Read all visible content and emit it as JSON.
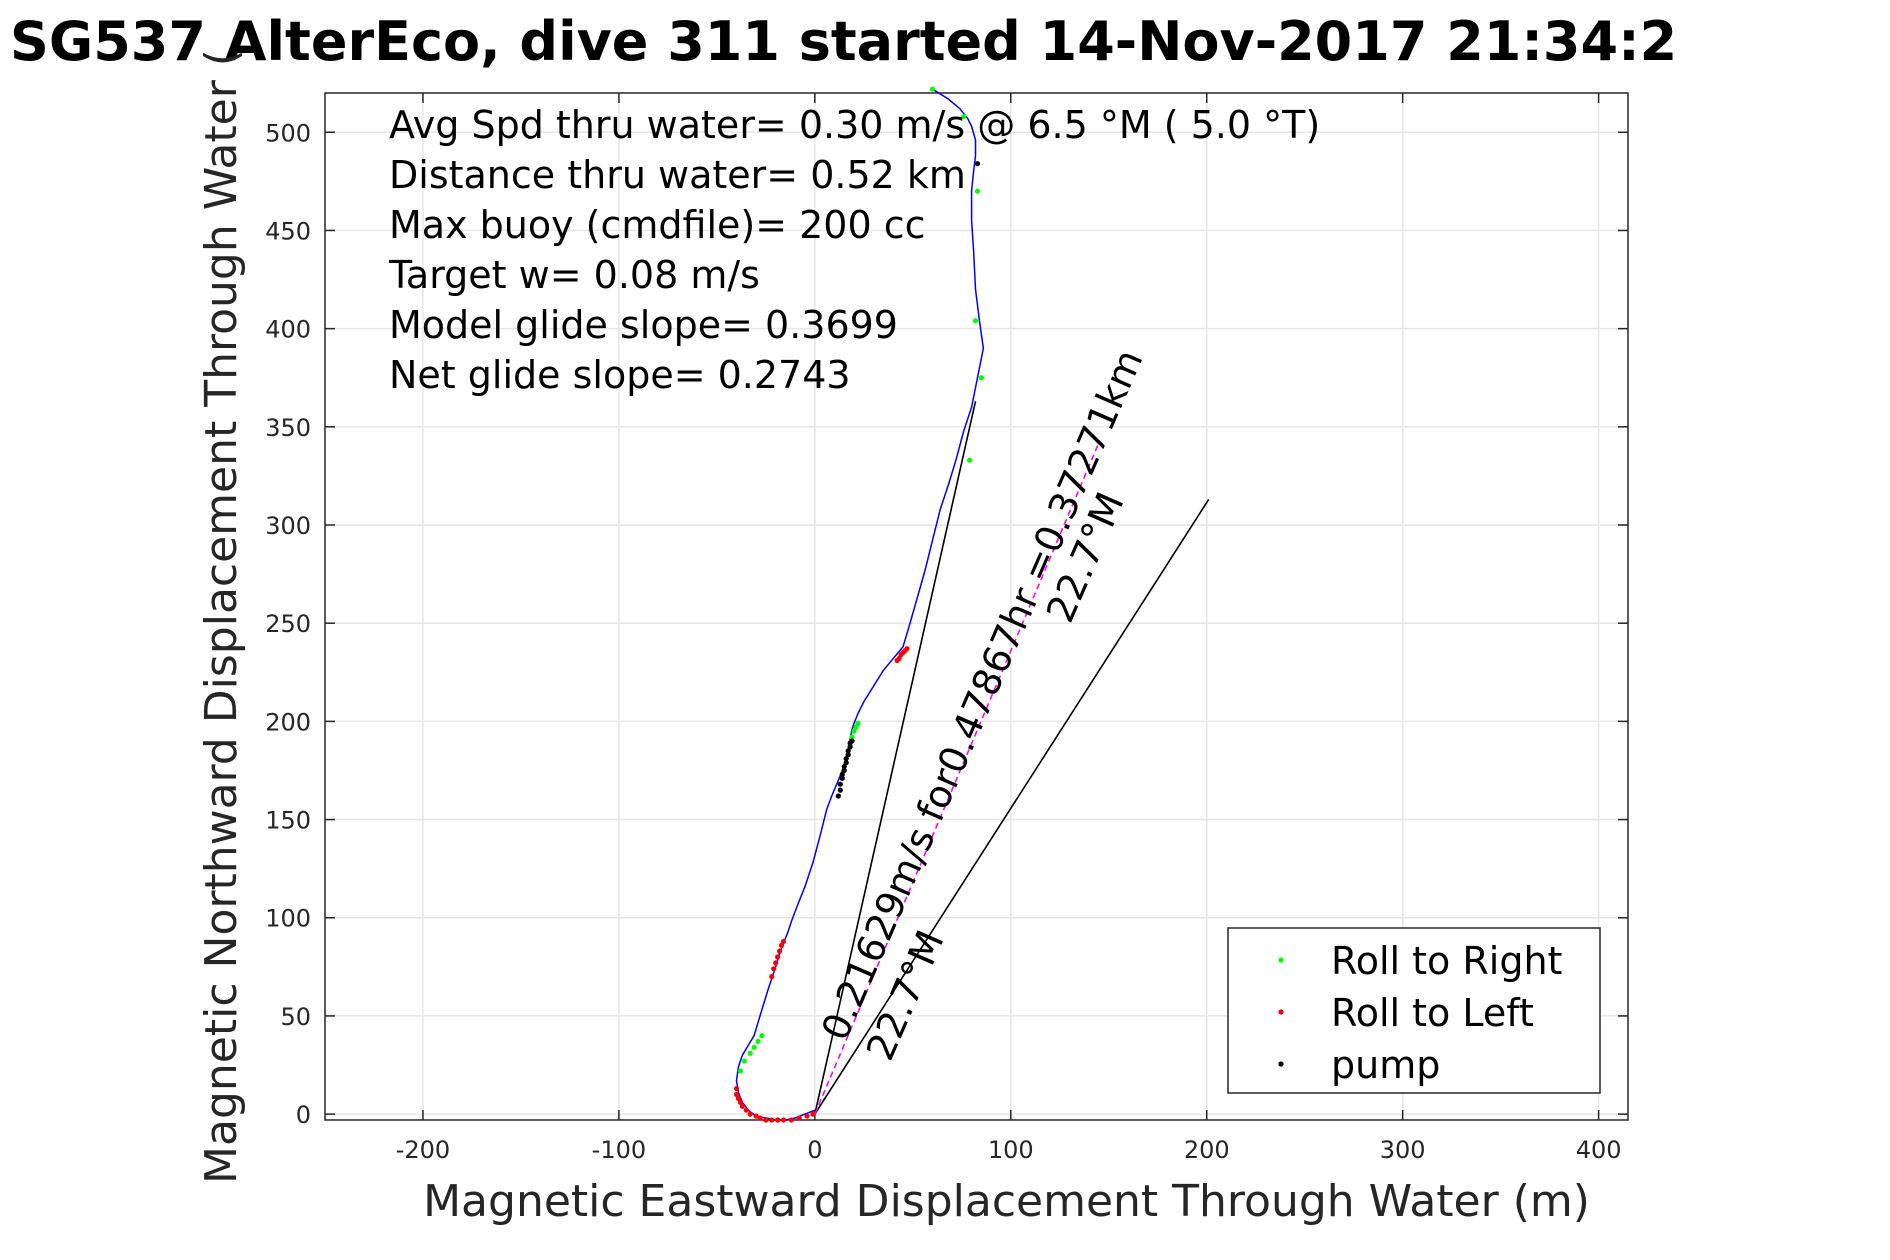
{
  "chart_data": {
    "type": "scatter",
    "title": "SG537 AlterEco, dive 311 started 14-Nov-2017 21:34:2",
    "xlabel": "Magnetic Eastward Displacement Through Water (m)",
    "ylabel": "Magnetic Northward Displacement Through Water (",
    "xlim": [
      -250,
      415
    ],
    "ylim": [
      -3,
      520
    ],
    "xticks": [
      -200,
      -100,
      0,
      100,
      200,
      300,
      400
    ],
    "yticks": [
      0,
      50,
      100,
      150,
      200,
      250,
      300,
      350,
      400,
      450,
      500
    ],
    "grid": true,
    "legend_position": "bottom-right",
    "annotations": [
      "Avg Spd thru water=  0.30 m/s @   6.5 °M (  5.0 °T)",
      "Distance thru water=  0.52 km",
      "Max buoy (cmdfile)= 200 cc",
      "Target w= 0.08 m/s",
      "Model glide slope= 0.3699",
      "Net glide slope= 0.2743"
    ],
    "rotated_labels": {
      "current_vector": "0.21629m/s for0.47867hr =0.37271km",
      "heading_upper": "22.7°M",
      "heading_lower": "22.7°M"
    },
    "track": {
      "name": "",
      "color": "#0000ff",
      "x": [
        0,
        -5,
        -10,
        -15,
        -20,
        -25,
        -30,
        -34,
        -37,
        -39,
        -40,
        -39,
        -37,
        -34,
        -31,
        -28,
        -24,
        -20,
        -18,
        -16,
        -14,
        -12,
        -9,
        -5,
        -1,
        3,
        6,
        9,
        12,
        14,
        16,
        17,
        18,
        19,
        20,
        22,
        25,
        30,
        35,
        40,
        45,
        48,
        52,
        56,
        60,
        64,
        68,
        72,
        76,
        80,
        83,
        86,
        84,
        82,
        81,
        80,
        80,
        81,
        82,
        82,
        80,
        78,
        74,
        68,
        60
      ],
      "y": [
        2,
        0,
        -2,
        -3,
        -3,
        -2,
        -1,
        2,
        6,
        11,
        17,
        24,
        30,
        35,
        40,
        50,
        63,
        75,
        82,
        87,
        92,
        98,
        106,
        116,
        128,
        143,
        155,
        163,
        170,
        175,
        181,
        186,
        191,
        196,
        199,
        204,
        210,
        218,
        226,
        232,
        238,
        248,
        262,
        276,
        292,
        308,
        320,
        333,
        348,
        360,
        375,
        390,
        404,
        420,
        440,
        455,
        470,
        480,
        488,
        496,
        503,
        507,
        512,
        517,
        522
      ]
    },
    "series": [
      {
        "name": "Roll to Right",
        "color": "#00ff00",
        "x": [
          -38,
          -36,
          -33,
          -31,
          -29,
          -27,
          17,
          18,
          19,
          20,
          21,
          22,
          60,
          76,
          79,
          82,
          83,
          85
        ],
        "y": [
          22,
          27,
          31,
          34,
          37,
          40,
          183,
          188,
          192,
          195,
          197,
          199,
          522,
          508,
          333,
          404,
          470,
          375
        ]
      },
      {
        "name": "Roll to Left",
        "color": "#ff0000",
        "x": [
          -40,
          -40,
          -39,
          -38,
          -37,
          -35,
          -33,
          -30,
          -28,
          -25,
          -22,
          -19,
          -16,
          -12,
          -8,
          -4,
          -1,
          -22,
          -21,
          -20,
          -19,
          -18,
          -17,
          -16,
          42,
          43,
          44,
          45,
          46,
          47
        ],
        "y": [
          13,
          10,
          8,
          6,
          4,
          2,
          0,
          -1,
          -2,
          -3,
          -3,
          -3,
          -3,
          -3,
          -2,
          -1,
          0,
          70,
          74,
          77,
          80,
          83,
          86,
          88,
          231,
          232,
          234,
          235,
          236,
          237
        ]
      },
      {
        "name": "pump",
        "color": "#000000",
        "x": [
          12,
          13,
          13,
          14,
          14,
          15,
          15,
          16,
          16,
          17,
          17,
          18,
          18,
          19,
          83
        ],
        "y": [
          162,
          165,
          168,
          171,
          173,
          175,
          177,
          179,
          181,
          183,
          185,
          187,
          189,
          190,
          484
        ]
      }
    ],
    "lines": [
      {
        "label": "current_vector",
        "color": "#000000",
        "x": [
          0,
          82
        ],
        "y": [
          0,
          363
        ]
      },
      {
        "label": "heading_vector",
        "color": "#000000",
        "x": [
          0,
          201
        ],
        "y": [
          0,
          313
        ]
      },
      {
        "label": "net_vector",
        "color": "#ff00ff",
        "x": [
          0,
          145
        ],
        "y": [
          0,
          342
        ]
      }
    ],
    "legend": [
      "Roll to Right",
      "Roll to Left",
      "pump"
    ]
  }
}
